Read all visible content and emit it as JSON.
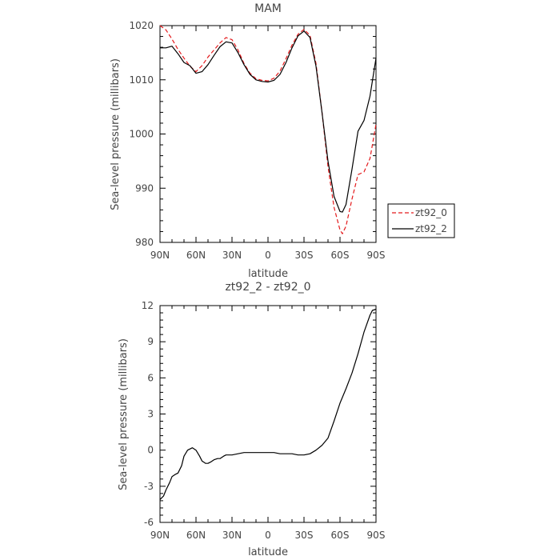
{
  "chart_data": [
    {
      "type": "line",
      "title": "MAM",
      "xlabel": "latitude",
      "ylabel": "Sea-level pressure (millibars)",
      "x_ticks": [
        "90N",
        "60N",
        "30N",
        "0",
        "30S",
        "60S",
        "90S"
      ],
      "y_ticks": [
        "980",
        "990",
        "1000",
        "1010",
        "1020"
      ],
      "xlim": [
        -90,
        90
      ],
      "ylim": [
        980,
        1020
      ],
      "legend_position": "right",
      "series": [
        {
          "name": "zt92_0",
          "color": "#e41a1c",
          "dash": "dashed",
          "x": [
            -90,
            -85,
            -80,
            -75,
            -70,
            -65,
            -60,
            -55,
            -50,
            -45,
            -40,
            -35,
            -30,
            -25,
            -20,
            -15,
            -10,
            -5,
            0,
            5,
            10,
            15,
            20,
            25,
            30,
            35,
            40,
            45,
            50,
            55,
            60,
            62,
            65,
            70,
            75,
            80,
            85,
            90
          ],
          "y": [
            1020.0,
            1019.2,
            1017.5,
            1015.6,
            1014.0,
            1012.5,
            1011.5,
            1012.6,
            1014.2,
            1015.5,
            1016.8,
            1017.8,
            1017.4,
            1015.5,
            1013.0,
            1011.2,
            1010.2,
            1009.9,
            1009.8,
            1010.3,
            1011.6,
            1013.9,
            1016.4,
            1018.4,
            1019.3,
            1018.2,
            1013.0,
            1004.0,
            994.0,
            986.5,
            982.3,
            981.6,
            983.0,
            988.0,
            992.5,
            993.0,
            995.5,
            1001.8
          ]
        },
        {
          "name": "zt92_2",
          "color": "#000000",
          "dash": "solid",
          "x": [
            -90,
            -85,
            -80,
            -75,
            -70,
            -65,
            -60,
            -55,
            -50,
            -45,
            -40,
            -35,
            -30,
            -25,
            -20,
            -15,
            -10,
            -5,
            0,
            5,
            10,
            15,
            20,
            25,
            30,
            35,
            40,
            45,
            50,
            55,
            60,
            62,
            65,
            70,
            75,
            80,
            85,
            90
          ],
          "y": [
            1015.9,
            1015.9,
            1016.2,
            1014.8,
            1013.2,
            1012.6,
            1011.2,
            1011.5,
            1012.8,
            1014.5,
            1016.1,
            1017.0,
            1016.8,
            1015.0,
            1012.8,
            1011.0,
            1010.0,
            1009.7,
            1009.6,
            1009.9,
            1011.0,
            1013.2,
            1015.9,
            1018.1,
            1019.0,
            1017.8,
            1012.5,
            1004.0,
            995.0,
            988.5,
            985.7,
            985.6,
            987.0,
            993.5,
            1000.5,
            1002.5,
            1007.0,
            1014.0
          ]
        }
      ]
    },
    {
      "type": "line",
      "title": "zt92_2 - zt92_0",
      "xlabel": "latitude",
      "ylabel": "Sea-level pressure (millibars)",
      "x_ticks": [
        "90N",
        "60N",
        "30N",
        "0",
        "30S",
        "60S",
        "90S"
      ],
      "y_ticks": [
        "-6",
        "-3",
        "0",
        "3",
        "6",
        "9",
        "12"
      ],
      "xlim": [
        -90,
        90
      ],
      "ylim": [
        -6,
        12
      ],
      "series": [
        {
          "color": "#000000",
          "dash": "solid",
          "x": [
            -90,
            -87,
            -85,
            -82,
            -80,
            -77,
            -75,
            -72,
            -70,
            -67,
            -65,
            -63,
            -60,
            -57,
            -55,
            -52,
            -50,
            -48,
            -45,
            -42,
            -40,
            -37,
            -35,
            -30,
            -25,
            -20,
            -15,
            -10,
            -5,
            0,
            5,
            10,
            15,
            20,
            25,
            30,
            35,
            40,
            45,
            50,
            55,
            60,
            65,
            70,
            75,
            80,
            85,
            87,
            90
          ],
          "y": [
            -4.1,
            -3.8,
            -3.3,
            -2.7,
            -2.2,
            -2.0,
            -1.9,
            -1.3,
            -0.5,
            0.0,
            0.1,
            0.2,
            0.0,
            -0.5,
            -0.9,
            -1.1,
            -1.1,
            -1.0,
            -0.8,
            -0.7,
            -0.7,
            -0.5,
            -0.4,
            -0.4,
            -0.3,
            -0.2,
            -0.2,
            -0.2,
            -0.2,
            -0.2,
            -0.2,
            -0.3,
            -0.3,
            -0.3,
            -0.4,
            -0.4,
            -0.3,
            0.0,
            0.4,
            1.0,
            2.4,
            3.9,
            5.1,
            6.4,
            8.0,
            9.8,
            11.2,
            11.6,
            11.7
          ]
        }
      ]
    }
  ]
}
